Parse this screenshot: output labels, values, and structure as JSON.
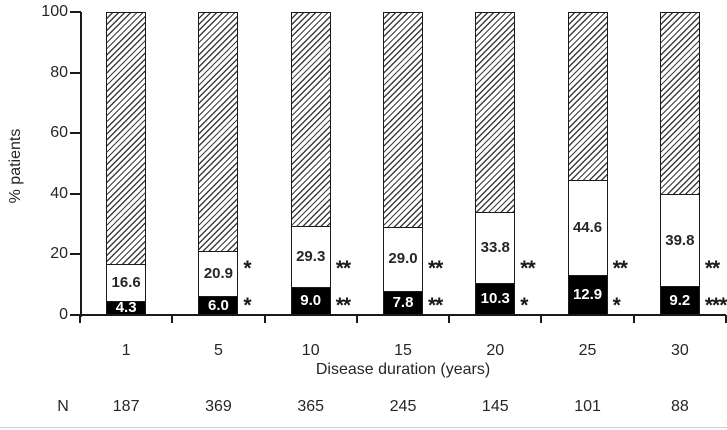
{
  "chart_data": {
    "type": "bar",
    "stacked": true,
    "title": "",
    "xlabel": "Disease duration (years)",
    "ylabel": "% patients",
    "ylim": [
      0,
      100
    ],
    "y_ticks": [
      "0",
      "20",
      "40",
      "60",
      "80",
      "100"
    ],
    "grid": false,
    "legend": "none",
    "categories": [
      "1",
      "5",
      "10",
      "15",
      "20",
      "25",
      "30"
    ],
    "series": [
      {
        "name": "bottom-black-segment",
        "pattern": "solid-black",
        "values": [
          4.3,
          6.0,
          9.0,
          7.8,
          10.3,
          12.9,
          9.2
        ],
        "labels": [
          "4.3",
          "6.0",
          "9.0",
          "7.8",
          "10.3",
          "12.9",
          "9.2"
        ]
      },
      {
        "name": "middle-white-segment",
        "pattern": "white",
        "cumulative_top": [
          16.6,
          20.9,
          29.3,
          29.0,
          33.8,
          44.6,
          39.8
        ],
        "labels": [
          "16.6",
          "20.9",
          "29.3",
          "29.0",
          "33.8",
          "44.6",
          "39.8"
        ]
      },
      {
        "name": "top-hatched-segment",
        "pattern": "diagonal-hatch",
        "fills_to": 100
      }
    ],
    "significance_upper": [
      "",
      "*",
      "**",
      "**",
      "**",
      "**",
      "**"
    ],
    "significance_lower": [
      "",
      "*",
      "**",
      "**",
      "*",
      "*",
      "***"
    ],
    "n_label": "N",
    "n_values": [
      "187",
      "369",
      "365",
      "245",
      "145",
      "101",
      "88"
    ],
    "colors": {
      "bar_border": "#1a1a1a",
      "black_fill": "#000000",
      "white_fill": "#ffffff",
      "hatch_line": "#3f3f3f",
      "text": "#262626",
      "bottom_rule": "#ccd3da"
    }
  }
}
